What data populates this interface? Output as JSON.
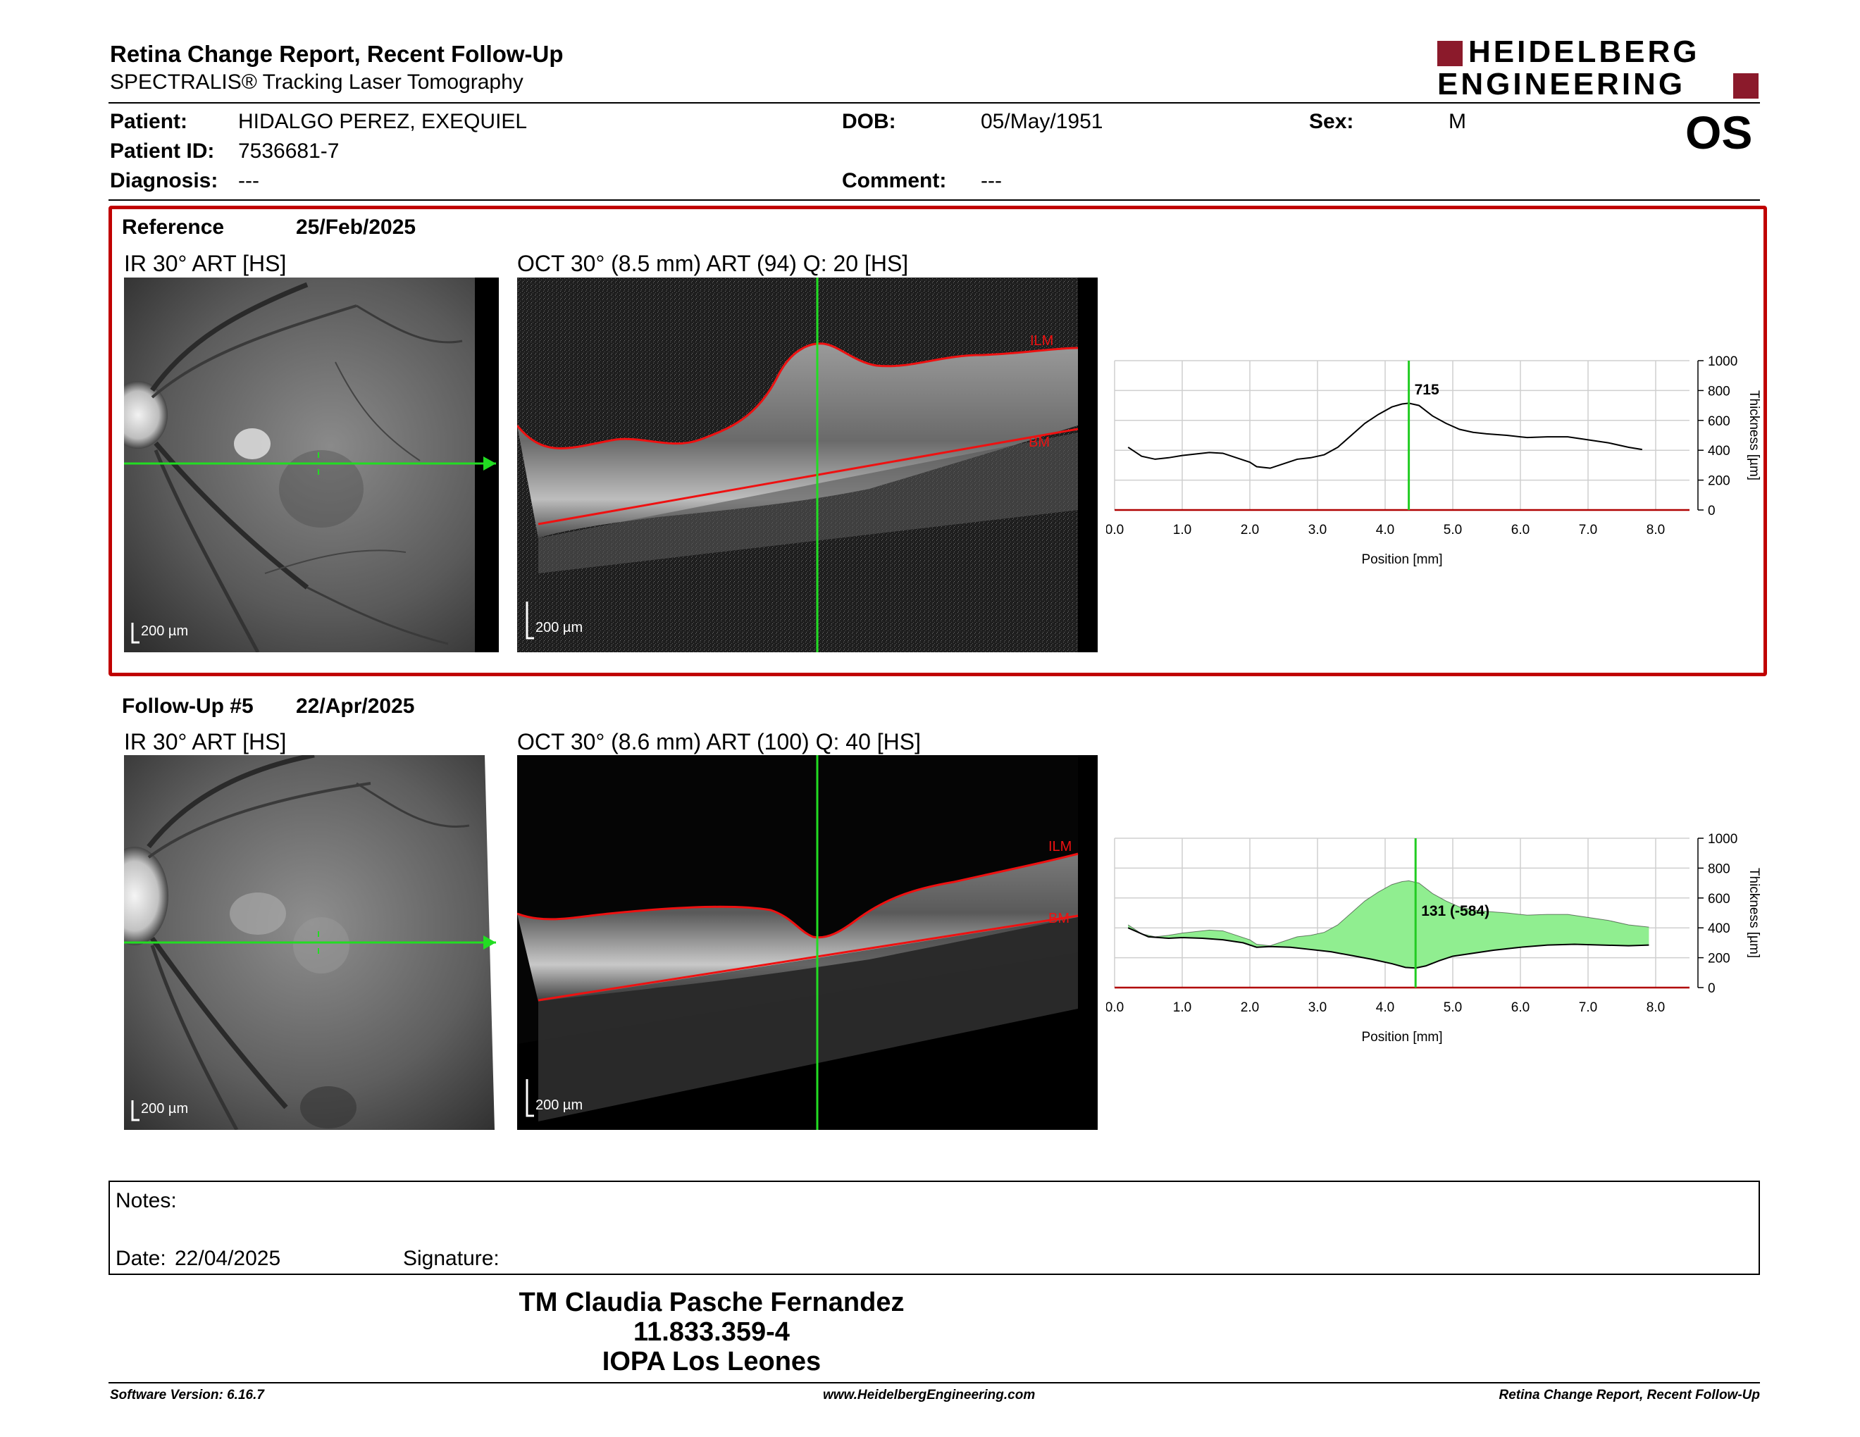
{
  "header": {
    "title": "Retina Change Report, Recent Follow-Up",
    "subtitle": "SPECTRALIS® Tracking Laser Tomography",
    "logo_line1": "HEIDELBERG",
    "logo_line2": "ENGINEERING",
    "eye": "OS",
    "brand_color": "#8b1a2b"
  },
  "patient": {
    "patient_label": "Patient:",
    "patient_value": "HIDALGO PEREZ, EXEQUIEL",
    "id_label": "Patient ID:",
    "id_value": "7536681-7",
    "diagnosis_label": "Diagnosis:",
    "diagnosis_value": "---",
    "dob_label": "DOB:",
    "dob_value": "05/May/1951",
    "comment_label": "Comment:",
    "comment_value": "---",
    "sex_label": "Sex:",
    "sex_value": "M"
  },
  "reference": {
    "label": "Reference",
    "date": "25/Feb/2025",
    "ir_title": "IR 30° ART [HS]",
    "oct_title": "OCT 30° (8.5 mm) ART (94) Q: 20 [HS]",
    "scale": "200 µm",
    "ilm": "ILM",
    "bm": "BM",
    "frame_color": "#c00000"
  },
  "followup": {
    "label": "Follow-Up #5",
    "date": "22/Apr/2025",
    "ir_title": "IR 30° ART [HS]",
    "oct_title": "OCT 30° (8.6 mm) ART (100) Q: 40 [HS]",
    "scale": "200 µm",
    "ilm": "ILM",
    "bm": "BM"
  },
  "chart_data": [
    {
      "type": "line",
      "xlabel": "Position [mm]",
      "ylabel": "Thickness [µm]",
      "xlim": [
        0,
        8.5
      ],
      "ylim": [
        0,
        1000
      ],
      "xticks": [
        "0.0",
        "1.0",
        "2.0",
        "3.0",
        "4.0",
        "5.0",
        "6.0",
        "7.0",
        "8.0"
      ],
      "yticks": [
        "0",
        "200",
        "400",
        "600",
        "800",
        "1000"
      ],
      "grid": true,
      "marker_x": 4.35,
      "annotation": "715",
      "series": [
        {
          "x": [
            0.2,
            0.4,
            0.6,
            0.8,
            1.0,
            1.2,
            1.4,
            1.6,
            1.8,
            2.0,
            2.1,
            2.3,
            2.5,
            2.7,
            2.9,
            3.1,
            3.3,
            3.5,
            3.7,
            3.9,
            4.1,
            4.25,
            4.35,
            4.5,
            4.7,
            4.9,
            5.1,
            5.3,
            5.5,
            5.8,
            6.1,
            6.4,
            6.7,
            7.0,
            7.3,
            7.6,
            7.8
          ],
          "y": [
            420,
            360,
            340,
            350,
            365,
            375,
            385,
            380,
            350,
            320,
            290,
            280,
            310,
            340,
            350,
            370,
            420,
            500,
            580,
            640,
            690,
            710,
            715,
            700,
            630,
            580,
            540,
            520,
            510,
            500,
            485,
            490,
            490,
            470,
            450,
            420,
            405
          ]
        }
      ]
    },
    {
      "type": "area",
      "xlabel": "Position [mm]",
      "ylabel": "Thickness [µm]",
      "xlim": [
        0,
        8.5
      ],
      "ylim": [
        0,
        1000
      ],
      "xticks": [
        "0.0",
        "1.0",
        "2.0",
        "3.0",
        "4.0",
        "5.0",
        "6.0",
        "7.0",
        "8.0"
      ],
      "yticks": [
        "0",
        "200",
        "400",
        "600",
        "800",
        "1000"
      ],
      "grid": true,
      "marker_x": 4.45,
      "annotation": "131 (-584)",
      "fill_color": "#90ee90",
      "series": [
        {
          "x": [
            0.2,
            0.4,
            0.6,
            0.8,
            1.0,
            1.2,
            1.4,
            1.6,
            1.8,
            2.0,
            2.1,
            2.3,
            2.5,
            2.7,
            2.9,
            3.1,
            3.3,
            3.5,
            3.7,
            3.9,
            4.1,
            4.25,
            4.35,
            4.5,
            4.7,
            4.9,
            5.1,
            5.3,
            5.5,
            5.8,
            6.1,
            6.4,
            6.7,
            7.0,
            7.3,
            7.6,
            7.9
          ],
          "y": [
            420,
            360,
            340,
            350,
            365,
            375,
            385,
            380,
            350,
            320,
            290,
            280,
            310,
            340,
            350,
            370,
            420,
            500,
            580,
            640,
            690,
            710,
            715,
            700,
            630,
            580,
            540,
            520,
            510,
            500,
            485,
            490,
            490,
            470,
            450,
            420,
            405
          ]
        },
        {
          "x": [
            0.2,
            0.5,
            0.8,
            1.0,
            1.3,
            1.6,
            1.9,
            2.1,
            2.3,
            2.6,
            2.9,
            3.2,
            3.5,
            3.8,
            4.1,
            4.3,
            4.45,
            4.6,
            4.8,
            5.0,
            5.3,
            5.6,
            6.0,
            6.4,
            6.8,
            7.2,
            7.6,
            7.9
          ],
          "y": [
            400,
            340,
            330,
            335,
            330,
            320,
            300,
            270,
            275,
            270,
            255,
            240,
            215,
            190,
            160,
            135,
            131,
            145,
            180,
            210,
            230,
            250,
            270,
            285,
            290,
            285,
            280,
            285
          ]
        }
      ]
    }
  ],
  "notes": {
    "notes_label": "Notes:",
    "date_label": "Date:",
    "date_value": "22/04/2025",
    "signature_label": "Signature:"
  },
  "stamp": {
    "line1": "TM Claudia Pasche Fernandez",
    "line2": "11.833.359-4",
    "line3": "IOPA Los Leones"
  },
  "footer": {
    "left": "Software Version: 6.16.7",
    "center": "www.HeidelbergEngineering.com",
    "right": "Retina Change Report, Recent Follow-Up"
  }
}
